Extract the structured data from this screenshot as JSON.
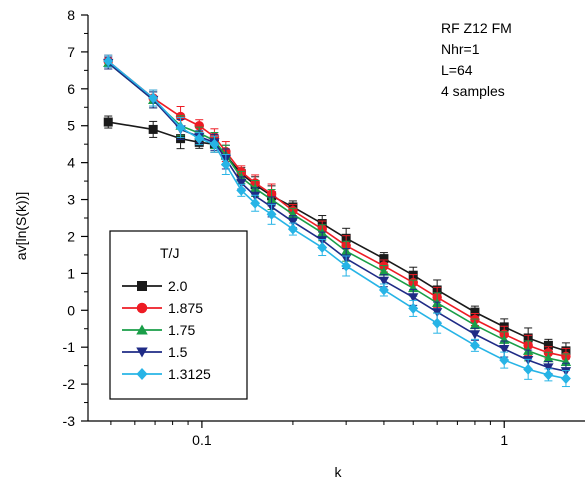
{
  "chart_data": {
    "type": "line",
    "xscale": "log",
    "xlabel": "k",
    "ylabel": "av[ln(S(k))]",
    "xlim": [
      0.042,
      1.85
    ],
    "ylim": [
      -3,
      8
    ],
    "yticks": [
      -3,
      -2,
      -1,
      0,
      1,
      2,
      3,
      4,
      5,
      6,
      7,
      8
    ],
    "xticks": [
      {
        "value": 0.1,
        "label": "0.1"
      },
      {
        "value": 1,
        "label": "1"
      }
    ],
    "annotations": [
      "RF Z12 FM",
      "Nhr=1",
      "L=64",
      "4 samples"
    ],
    "legend": {
      "title": "T/J",
      "placement": "lower-left"
    },
    "series": [
      {
        "name": "2.0",
        "color": "#1a1a1a",
        "marker": "square",
        "x": [
          0.049,
          0.069,
          0.085,
          0.098,
          0.11,
          0.12,
          0.135,
          0.15,
          0.17,
          0.2,
          0.25,
          0.3,
          0.4,
          0.5,
          0.6,
          0.8,
          1.0,
          1.2,
          1.4,
          1.6
        ],
        "y": [
          5.1,
          4.9,
          4.65,
          4.55,
          4.5,
          4.2,
          3.7,
          3.4,
          3.1,
          2.8,
          2.35,
          1.95,
          1.4,
          0.95,
          0.55,
          -0.05,
          -0.45,
          -0.75,
          -0.95,
          -1.1
        ]
      },
      {
        "name": "1.875",
        "color": "#ee1c24",
        "marker": "circle",
        "x": [
          0.049,
          0.069,
          0.085,
          0.098,
          0.11,
          0.12,
          0.135,
          0.15,
          0.17,
          0.2,
          0.25,
          0.3,
          0.4,
          0.5,
          0.6,
          0.8,
          1.0,
          1.2,
          1.4,
          1.6
        ],
        "y": [
          6.75,
          5.75,
          5.25,
          5.0,
          4.7,
          4.3,
          3.75,
          3.45,
          3.15,
          2.7,
          2.2,
          1.75,
          1.2,
          0.75,
          0.35,
          -0.25,
          -0.65,
          -0.95,
          -1.15,
          -1.25
        ]
      },
      {
        "name": "1.75",
        "color": "#1a9e48",
        "marker": "triangle-up",
        "x": [
          0.049,
          0.069,
          0.085,
          0.098,
          0.11,
          0.12,
          0.135,
          0.15,
          0.17,
          0.2,
          0.25,
          0.3,
          0.4,
          0.5,
          0.6,
          0.8,
          1.0,
          1.2,
          1.4,
          1.6
        ],
        "y": [
          6.7,
          5.7,
          5.0,
          4.8,
          4.6,
          4.2,
          3.6,
          3.3,
          3.0,
          2.6,
          2.1,
          1.6,
          1.05,
          0.6,
          0.2,
          -0.4,
          -0.8,
          -1.1,
          -1.3,
          -1.4
        ]
      },
      {
        "name": "1.5",
        "color": "#1f2b86",
        "marker": "triangle-down",
        "x": [
          0.049,
          0.069,
          0.085,
          0.098,
          0.11,
          0.12,
          0.135,
          0.15,
          0.17,
          0.2,
          0.25,
          0.3,
          0.4,
          0.5,
          0.6,
          0.8,
          1.0,
          1.2,
          1.4,
          1.6
        ],
        "y": [
          6.7,
          5.7,
          4.9,
          4.7,
          4.55,
          4.1,
          3.45,
          3.1,
          2.8,
          2.4,
          1.9,
          1.4,
          0.8,
          0.35,
          -0.05,
          -0.65,
          -1.05,
          -1.35,
          -1.55,
          -1.65
        ]
      },
      {
        "name": "1.3125",
        "color": "#27b4e6",
        "marker": "diamond",
        "x": [
          0.049,
          0.069,
          0.085,
          0.098,
          0.11,
          0.12,
          0.135,
          0.15,
          0.17,
          0.2,
          0.25,
          0.3,
          0.4,
          0.5,
          0.6,
          0.8,
          1.0,
          1.2,
          1.4,
          1.6
        ],
        "y": [
          6.75,
          5.75,
          4.95,
          4.65,
          4.5,
          3.95,
          3.25,
          2.9,
          2.6,
          2.2,
          1.7,
          1.2,
          0.55,
          0.05,
          -0.35,
          -0.95,
          -1.35,
          -1.6,
          -1.75,
          -1.85
        ]
      }
    ]
  }
}
